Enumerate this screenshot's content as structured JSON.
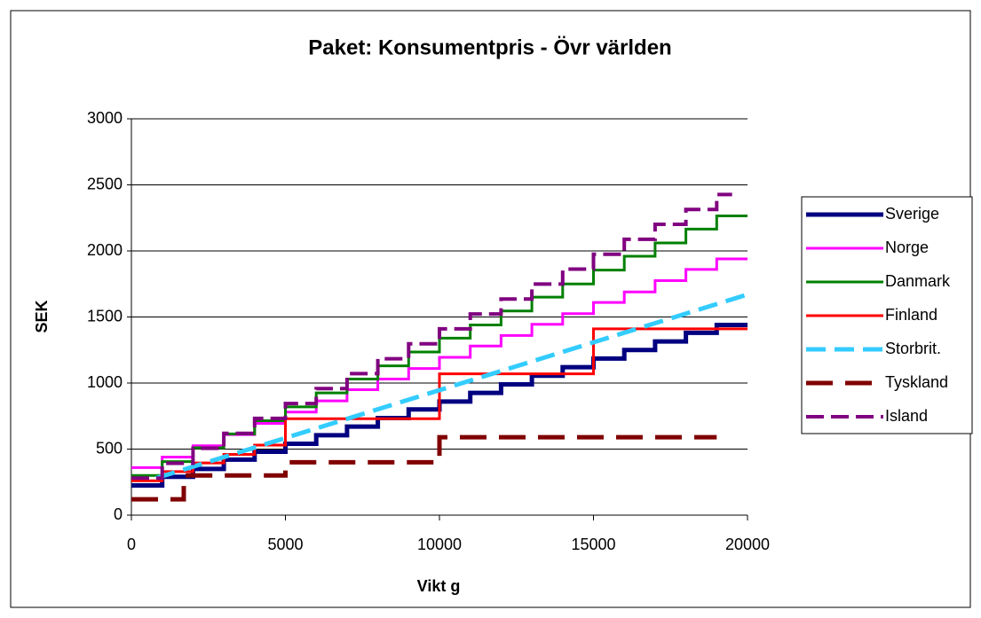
{
  "chart_data": {
    "type": "line",
    "title": "Paket: Konsumentpris - Övr världen",
    "x_label": "Vikt g",
    "y_label": "SEK",
    "xlim": [
      0,
      20000
    ],
    "xticks": [
      0,
      5000,
      10000,
      15000,
      20000
    ],
    "ylim": [
      0,
      3000
    ],
    "yticks": [
      0,
      500,
      1000,
      1500,
      2000,
      2500,
      3000
    ],
    "grid": true,
    "legend": "right",
    "series": [
      {
        "name": "Sverige",
        "color": "#000080",
        "step": true,
        "x": [
          0,
          1000,
          2000,
          3000,
          4000,
          5000,
          6000,
          7000,
          8000,
          9000,
          10000,
          11000,
          12000,
          13000,
          14000,
          15000,
          16000,
          17000,
          18000,
          19000,
          20000
        ],
        "values": [
          225,
          290,
          350,
          420,
          480,
          540,
          605,
          670,
          735,
          800,
          860,
          925,
          990,
          1055,
          1120,
          1185,
          1250,
          1315,
          1380,
          1440,
          1440
        ]
      },
      {
        "name": "Norge",
        "color": "#ff00ff",
        "step": true,
        "x": [
          0,
          1000,
          2000,
          3000,
          4000,
          5000,
          6000,
          7000,
          8000,
          9000,
          10000,
          11000,
          12000,
          13000,
          14000,
          15000,
          16000,
          17000,
          18000,
          19000,
          20000
        ],
        "values": [
          360,
          440,
          525,
          610,
          695,
          780,
          865,
          950,
          1030,
          1110,
          1195,
          1280,
          1360,
          1445,
          1525,
          1610,
          1690,
          1775,
          1860,
          1940,
          1940
        ]
      },
      {
        "name": "Danmark",
        "color": "#008000",
        "step": true,
        "x": [
          0,
          1000,
          2000,
          3000,
          4000,
          5000,
          6000,
          7000,
          8000,
          9000,
          10000,
          11000,
          12000,
          13000,
          14000,
          15000,
          16000,
          17000,
          18000,
          19000,
          20000
        ],
        "values": [
          300,
          405,
          510,
          615,
          715,
          820,
          925,
          1030,
          1130,
          1235,
          1340,
          1440,
          1545,
          1650,
          1750,
          1855,
          1960,
          2060,
          2165,
          2265,
          2265
        ]
      },
      {
        "name": "Finland",
        "color": "#ff0000",
        "step": true,
        "x": [
          0,
          1000,
          2000,
          3000,
          4000,
          5000,
          10000,
          15000,
          20000
        ],
        "values": [
          260,
          330,
          395,
          460,
          530,
          730,
          1070,
          1410,
          1410
        ]
      },
      {
        "name": "Storbrit.",
        "color": "#33ccff",
        "step": false,
        "x": [
          800,
          20000
        ],
        "values": [
          280,
          1670
        ]
      },
      {
        "name": "Tyskland",
        "color": "#800000",
        "step": true,
        "x": [
          0,
          1700,
          5000,
          10000,
          19000
        ],
        "values": [
          120,
          300,
          400,
          590,
          590
        ]
      },
      {
        "name": "Island",
        "color": "#800080",
        "step": true,
        "x": [
          0,
          1000,
          2000,
          3000,
          4000,
          5000,
          6000,
          7000,
          8000,
          9000,
          10000,
          11000,
          12000,
          13000,
          14000,
          15000,
          16000,
          17000,
          18000,
          19000,
          19500
        ],
        "values": [
          280,
          393,
          506,
          619,
          732,
          845,
          958,
          1071,
          1184,
          1297,
          1410,
          1523,
          1636,
          1749,
          1862,
          1975,
          2088,
          2201,
          2314,
          2427,
          2427
        ]
      }
    ]
  }
}
